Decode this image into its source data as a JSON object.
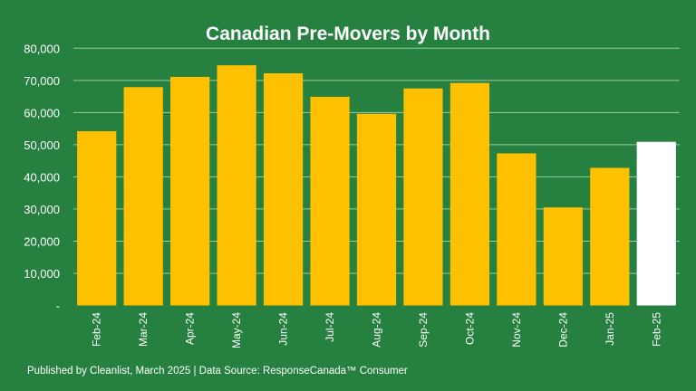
{
  "chart_data": {
    "type": "bar",
    "title": "Canadian Pre-Movers by Month",
    "xlabel": "",
    "ylabel": "",
    "ylim": [
      0,
      80000
    ],
    "grid": true,
    "yticks": [
      0,
      10000,
      20000,
      30000,
      40000,
      50000,
      60000,
      70000,
      80000
    ],
    "ytick_labels": [
      "-",
      "10,000",
      "20,000",
      "30,000",
      "40,000",
      "50,000",
      "60,000",
      "70,000",
      "80,000"
    ],
    "categories": [
      "Feb-24",
      "Mar-24",
      "Apr-24",
      "May-24",
      "Jun-24",
      "Jul-24",
      "Aug-24",
      "Sep-24",
      "Oct-24",
      "Nov-24",
      "Dec-24",
      "Jan-25",
      "Feb-25"
    ],
    "values": [
      54200,
      67900,
      71100,
      74700,
      72200,
      64900,
      59600,
      67500,
      69200,
      47300,
      30500,
      42800,
      50900
    ],
    "bar_colors": [
      "#ffc000",
      "#ffc000",
      "#ffc000",
      "#ffc000",
      "#ffc000",
      "#ffc000",
      "#ffc000",
      "#ffc000",
      "#ffc000",
      "#ffc000",
      "#ffc000",
      "#ffc000",
      "#ffffff"
    ]
  },
  "footer": "Published by Cleanlist, March 2025 | Data Source: ResponseCanada™ Consumer"
}
